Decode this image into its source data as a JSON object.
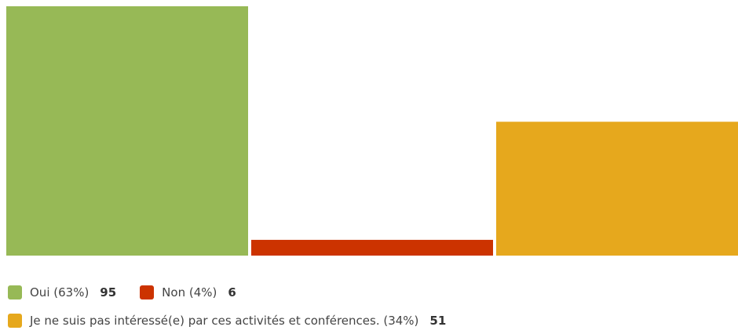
{
  "chart_data": {
    "type": "bar",
    "categories": [
      "Oui (63%)",
      "Non (4%)",
      "Je ne suis pas intéressé(e) par ces activités et conférences. (34%)"
    ],
    "values": [
      95,
      6,
      51
    ],
    "colors": [
      "#97b956",
      "#cc3300",
      "#e6a81d"
    ]
  }
}
